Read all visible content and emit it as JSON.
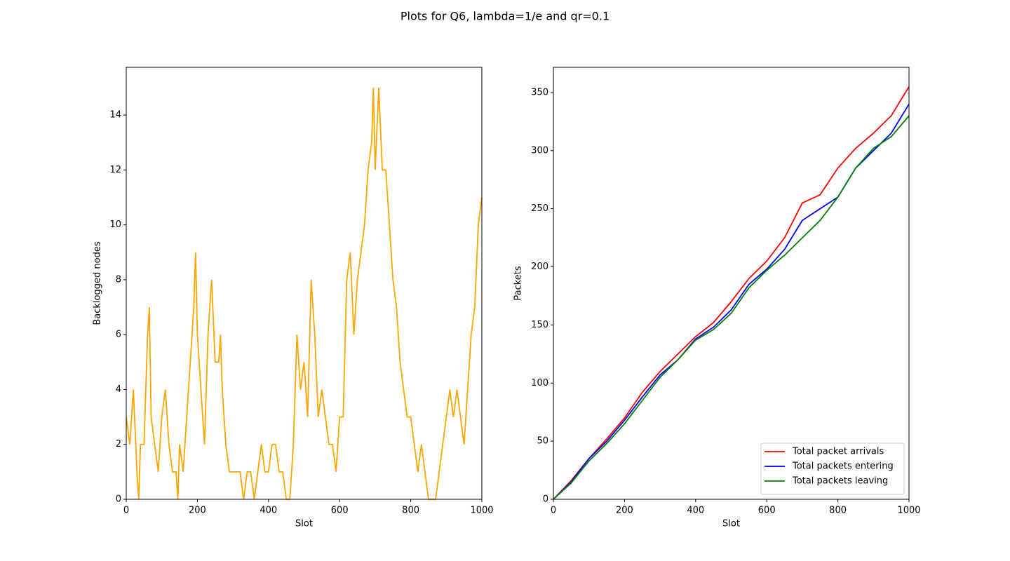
{
  "title": "Plots for Q6, lambda=1/e and qr=0.1",
  "chart_data": [
    {
      "type": "line",
      "xlabel": "Slot",
      "ylabel": "Backlogged nodes",
      "x": [
        0,
        10,
        20,
        30,
        35,
        40,
        50,
        60,
        65,
        70,
        80,
        90,
        100,
        110,
        120,
        130,
        140,
        145,
        150,
        160,
        170,
        180,
        190,
        195,
        200,
        210,
        220,
        230,
        240,
        250,
        260,
        265,
        270,
        280,
        290,
        300,
        310,
        320,
        330,
        340,
        350,
        360,
        370,
        380,
        390,
        400,
        410,
        420,
        430,
        440,
        450,
        460,
        470,
        480,
        490,
        500,
        510,
        520,
        530,
        540,
        550,
        560,
        570,
        580,
        590,
        600,
        610,
        620,
        630,
        640,
        650,
        660,
        670,
        680,
        690,
        695,
        700,
        710,
        720,
        730,
        740,
        750,
        760,
        770,
        780,
        790,
        800,
        810,
        820,
        830,
        840,
        850,
        860,
        870,
        880,
        890,
        900,
        910,
        920,
        930,
        940,
        950,
        960,
        970,
        980,
        990,
        1000
      ],
      "series": [
        {
          "color": "orange",
          "values": [
            3,
            2,
            4,
            1,
            0,
            2,
            2,
            6,
            7,
            3,
            2,
            1,
            3,
            4,
            2,
            1,
            1,
            0,
            2,
            1,
            3,
            5,
            7,
            9,
            6,
            4,
            2,
            6,
            8,
            5,
            5,
            6,
            4,
            2,
            1,
            1,
            1,
            1,
            0,
            1,
            1,
            0,
            1,
            2,
            1,
            1,
            2,
            2,
            1,
            1,
            0,
            0,
            2,
            6,
            4,
            5,
            3,
            8,
            6,
            3,
            4,
            3,
            2,
            2,
            1,
            3,
            3,
            8,
            9,
            6,
            8,
            9,
            10,
            12,
            13,
            15,
            12,
            15,
            12,
            12,
            10,
            8,
            7,
            5,
            4,
            3,
            3,
            2,
            1,
            2,
            1,
            0,
            0,
            0,
            1,
            2,
            3,
            4,
            3,
            4,
            3,
            2,
            4,
            6,
            7,
            10,
            11
          ]
        }
      ],
      "xlim": [
        0,
        1000
      ],
      "ylim": [
        0,
        15.74
      ],
      "xticks": [
        0,
        200,
        400,
        600,
        800,
        1000
      ],
      "yticks": [
        0,
        2,
        4,
        6,
        8,
        10,
        12,
        14
      ]
    },
    {
      "type": "line",
      "xlabel": "Slot",
      "ylabel": "Packets",
      "x": [
        0,
        50,
        100,
        150,
        200,
        250,
        300,
        350,
        400,
        450,
        500,
        550,
        600,
        650,
        700,
        750,
        800,
        850,
        900,
        950,
        1000
      ],
      "series": [
        {
          "name": "Total packet arrivals",
          "color": "red",
          "values": [
            0,
            16,
            35,
            52,
            70,
            92,
            110,
            125,
            140,
            152,
            170,
            190,
            205,
            225,
            255,
            262,
            285,
            302,
            315,
            330,
            355
          ]
        },
        {
          "name": "Total packets entering",
          "color": "blue",
          "values": [
            0,
            15,
            35,
            50,
            68,
            88,
            107,
            120,
            138,
            148,
            163,
            185,
            198,
            215,
            240,
            250,
            260,
            285,
            300,
            315,
            340
          ]
        },
        {
          "name": "Total packets leaving",
          "color": "green",
          "values": [
            0,
            14,
            33,
            48,
            65,
            85,
            105,
            120,
            137,
            146,
            160,
            182,
            197,
            210,
            225,
            240,
            260,
            285,
            302,
            312,
            330
          ]
        }
      ],
      "xlim": [
        0,
        1000
      ],
      "ylim": [
        0,
        371.7
      ],
      "xticks": [
        0,
        200,
        400,
        600,
        800,
        1000
      ],
      "yticks": [
        0,
        50,
        100,
        150,
        200,
        250,
        300,
        350
      ],
      "legend": "lower right"
    }
  ]
}
